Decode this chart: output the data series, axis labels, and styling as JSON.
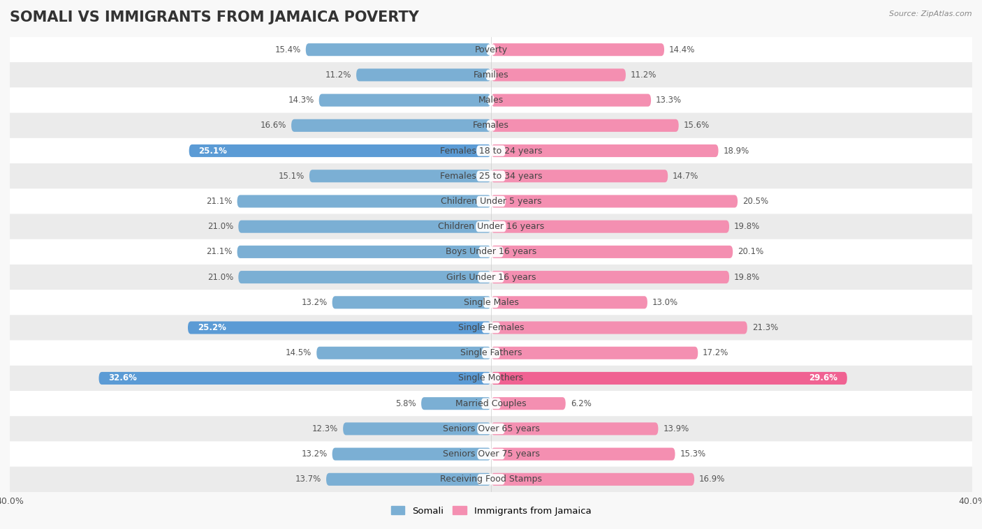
{
  "title": "SOMALI VS IMMIGRANTS FROM JAMAICA POVERTY",
  "source": "Source: ZipAtlas.com",
  "categories": [
    "Poverty",
    "Families",
    "Males",
    "Females",
    "Females 18 to 24 years",
    "Females 25 to 34 years",
    "Children Under 5 years",
    "Children Under 16 years",
    "Boys Under 16 years",
    "Girls Under 16 years",
    "Single Males",
    "Single Females",
    "Single Fathers",
    "Single Mothers",
    "Married Couples",
    "Seniors Over 65 years",
    "Seniors Over 75 years",
    "Receiving Food Stamps"
  ],
  "somali_values": [
    15.4,
    11.2,
    14.3,
    16.6,
    25.1,
    15.1,
    21.1,
    21.0,
    21.1,
    21.0,
    13.2,
    25.2,
    14.5,
    32.6,
    5.8,
    12.3,
    13.2,
    13.7
  ],
  "jamaica_values": [
    14.4,
    11.2,
    13.3,
    15.6,
    18.9,
    14.7,
    20.5,
    19.8,
    20.1,
    19.8,
    13.0,
    21.3,
    17.2,
    29.6,
    6.2,
    13.9,
    15.3,
    16.9
  ],
  "somali_color": "#7bafd4",
  "jamaica_color": "#f48fb1",
  "somali_highlight_color": "#5b9bd5",
  "jamaica_highlight_color": "#f06292",
  "highlight_somali": [
    4,
    11,
    13
  ],
  "highlight_jamaica": [
    13
  ],
  "bar_height": 0.5,
  "xlim": 40.0,
  "background_color": "#f8f8f8",
  "row_bg_white": "#ffffff",
  "row_bg_gray": "#ebebeb",
  "legend_somali": "Somali",
  "legend_jamaica": "Immigrants from Jamaica",
  "title_fontsize": 15,
  "label_fontsize": 9,
  "value_fontsize": 8.5,
  "axis_label_fontsize": 9,
  "text_color": "#555555"
}
